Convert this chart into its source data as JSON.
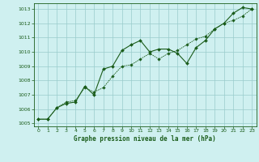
{
  "title": "Graphe pression niveau de la mer (hPa)",
  "background_color": "#cff0f0",
  "grid_color": "#99cccc",
  "line_color": "#1a5c1a",
  "xlim": [
    -0.5,
    23.5
  ],
  "ylim": [
    1004.8,
    1013.4
  ],
  "yticks": [
    1005,
    1006,
    1007,
    1008,
    1009,
    1010,
    1011,
    1012,
    1013
  ],
  "xticks": [
    0,
    1,
    2,
    3,
    4,
    5,
    6,
    7,
    8,
    9,
    10,
    11,
    12,
    13,
    14,
    15,
    16,
    17,
    18,
    19,
    20,
    21,
    22,
    23
  ],
  "series1_x": [
    0,
    1,
    2,
    3,
    4,
    5,
    6,
    7,
    8,
    9,
    10,
    11,
    12,
    13,
    14,
    15,
    16,
    17,
    18,
    19,
    20,
    21,
    22,
    23
  ],
  "series1_y": [
    1005.3,
    1005.3,
    1006.1,
    1006.4,
    1006.5,
    1007.6,
    1007.0,
    1008.8,
    1009.0,
    1010.1,
    1010.5,
    1010.8,
    1010.0,
    1010.2,
    1010.2,
    1009.9,
    1009.2,
    1010.3,
    1010.8,
    1011.6,
    1012.0,
    1012.7,
    1013.1,
    1013.0
  ],
  "series2_x": [
    0,
    1,
    2,
    3,
    4,
    5,
    6,
    7,
    8,
    9,
    10,
    11,
    12,
    13,
    14,
    15,
    16,
    17,
    18,
    19,
    20,
    21,
    22,
    23
  ],
  "series2_y": [
    1005.3,
    1005.3,
    1006.1,
    1006.5,
    1006.6,
    1007.5,
    1007.2,
    1007.5,
    1008.3,
    1009.0,
    1009.1,
    1009.5,
    1009.9,
    1009.5,
    1009.9,
    1010.1,
    1010.5,
    1010.9,
    1011.1,
    1011.6,
    1012.0,
    1012.2,
    1012.5,
    1013.0
  ]
}
